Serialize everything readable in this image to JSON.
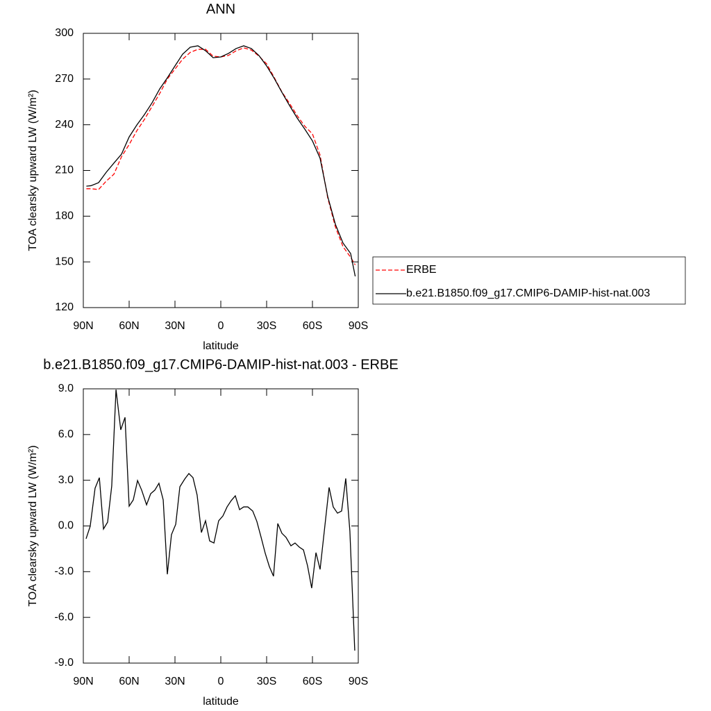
{
  "chart_data": [
    {
      "type": "line",
      "title": "ANN",
      "x_label": "latitude",
      "y_label": "TOA clearsky upward LW (W/m²)",
      "xlim": [
        90,
        -90
      ],
      "xticks": [
        {
          "value": 90,
          "label": "90N"
        },
        {
          "value": 60,
          "label": "60N"
        },
        {
          "value": 30,
          "label": "30N"
        },
        0,
        {
          "value": -30,
          "label": "30S"
        },
        {
          "value": -60,
          "label": "60S"
        },
        {
          "value": -90,
          "label": "90S"
        }
      ],
      "ylim": [
        120,
        300
      ],
      "yticks": [
        120,
        150,
        180,
        210,
        240,
        270,
        300
      ],
      "legend": "right",
      "x": [
        88,
        85,
        80,
        75,
        70,
        65,
        60,
        55,
        50,
        45,
        40,
        35,
        30,
        25,
        20,
        15,
        10,
        5,
        0,
        -5,
        -10,
        -15,
        -20,
        -25,
        -30,
        -35,
        -40,
        -45,
        -50,
        -55,
        -60,
        -65,
        -70,
        -75,
        -80,
        -85,
        -88
      ],
      "series": [
        {
          "name": "ERBE",
          "color": "#ff0000",
          "dashed": true,
          "values": [
            198,
            198,
            197.5,
            203,
            207.5,
            219,
            227,
            236,
            243.5,
            252,
            260.5,
            270,
            276.5,
            283,
            287.5,
            289.5,
            289.5,
            285,
            284.5,
            285.5,
            288.5,
            290.5,
            289,
            285,
            280,
            271,
            261.5,
            254,
            246,
            239,
            234,
            220,
            192,
            173,
            160,
            153,
            148
          ]
        },
        {
          "name": "b.e21.B1850.f09_g17.CMIP6-DAMIP-hist-nat.003",
          "color": "#000000",
          "dashed": false,
          "values": [
            199.7,
            200,
            202,
            208.8,
            214.8,
            220.7,
            232,
            239.8,
            246.7,
            254.4,
            263.5,
            270.8,
            278.6,
            286.3,
            290.9,
            291.8,
            288.6,
            284,
            284.5,
            286.8,
            290,
            291.8,
            290,
            285.4,
            278.6,
            270.4,
            261.3,
            252.6,
            244.4,
            237.1,
            229.4,
            218,
            192.9,
            174.7,
            162.4,
            155.5,
            140.5
          ]
        }
      ]
    },
    {
      "type": "line",
      "title": "b.e21.B1850.f09_g17.CMIP6-DAMIP-hist-nat.003 - ERBE",
      "x_label": "latitude",
      "y_label": "TOA clearsky upward LW (W/m²)",
      "xlim": [
        90,
        -90
      ],
      "xticks": [
        {
          "value": 90,
          "label": "90N"
        },
        {
          "value": 60,
          "label": "60N"
        },
        {
          "value": 30,
          "label": "30N"
        },
        0,
        {
          "value": -30,
          "label": "30S"
        },
        {
          "value": -60,
          "label": "60S"
        },
        {
          "value": -90,
          "label": "90S"
        }
      ],
      "ylim": [
        -9,
        9
      ],
      "yticks": [
        {
          "value": -9,
          "label": "-9.0"
        },
        {
          "value": -6,
          "label": "-6.0"
        },
        {
          "value": -3,
          "label": "-3.0"
        },
        {
          "value": 0,
          "label": "0.0"
        },
        {
          "value": 3,
          "label": "3.0"
        },
        {
          "value": 6,
          "label": "6.0"
        },
        {
          "value": 9,
          "label": "9.0"
        }
      ],
      "x": [
        88.2,
        85.5,
        82.3,
        79.5,
        76.8,
        74.1,
        71.4,
        68.6,
        65.5,
        62.7,
        60,
        57.3,
        54.5,
        51.8,
        48.6,
        45.9,
        43.2,
        40.5,
        37.7,
        35,
        32.3,
        29.5,
        26.8,
        23.6,
        20.9,
        18.2,
        15.5,
        12.7,
        10,
        7.3,
        4.5,
        1.4,
        -1.4,
        -4.1,
        -6.8,
        -9.5,
        -12.3,
        -15,
        -17.7,
        -20.9,
        -23.6,
        -26.4,
        -29.1,
        -31.8,
        -34.5,
        -37.3,
        -40,
        -42.7,
        -45.9,
        -48.6,
        -51.4,
        -54.1,
        -56.8,
        -59.5,
        -62.3,
        -65,
        -67.7,
        -70.9,
        -73.6,
        -76.4,
        -79.1,
        -81.8,
        -84.5,
        -87.7
      ],
      "series": [
        {
          "color": "#000000",
          "dashed": false,
          "values": [
            -0.84,
            -0.02,
            2.48,
            3.17,
            -0.2,
            0.25,
            2.62,
            8.95,
            6.31,
            7.13,
            1.3,
            1.71,
            2.98,
            2.35,
            1.39,
            2.12,
            2.35,
            2.8,
            1.71,
            -3.17,
            -0.57,
            0.11,
            2.57,
            3.08,
            3.44,
            3.17,
            2.03,
            -0.43,
            0.34,
            -0.98,
            -1.12,
            0.34,
            0.66,
            1.25,
            1.66,
            1.98,
            1.07,
            1.25,
            1.25,
            0.98,
            0.3,
            -0.75,
            -1.8,
            -2.67,
            -3.3,
            0.16,
            -0.48,
            -0.75,
            -1.3,
            -1.12,
            -1.39,
            -1.57,
            -2.62,
            -4.08,
            -1.75,
            -2.85,
            -0.39,
            2.53,
            1.25,
            0.84,
            0.98,
            3.12,
            -0.34,
            -8.18
          ]
        }
      ]
    }
  ]
}
